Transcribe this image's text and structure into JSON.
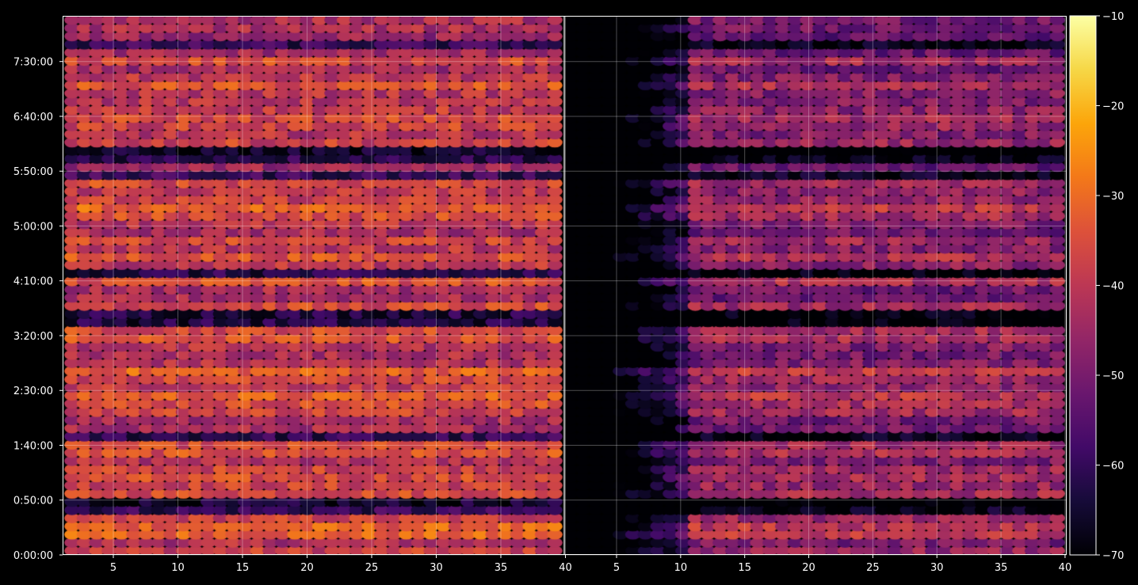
{
  "chart_data": {
    "type": "heatmap",
    "title": "",
    "xlabel": "",
    "ylabel": "",
    "grid": true,
    "colormap": "inferno",
    "background_color": "#000000",
    "panels": [
      {
        "name": "",
        "x_range": [
          1,
          40
        ],
        "x_ticks": [
          5,
          10,
          15,
          20,
          25,
          30,
          35,
          40
        ],
        "x_tick_labels": [
          "5",
          "10",
          "15",
          "20",
          "25",
          "30",
          "35",
          "40"
        ],
        "typical_level_db": -40,
        "hot_rows_time_hint": [
          "0:20:00",
          "1:40:00",
          "2:30:00",
          "2:45:00",
          "4:10:00",
          "5:20:00",
          "6:40:00",
          "7:30:00"
        ]
      },
      {
        "name": "",
        "x_range": [
          1,
          40
        ],
        "x_ticks": [
          5,
          10,
          15,
          20,
          25,
          30,
          35,
          40
        ],
        "x_tick_labels": [
          "5",
          "10",
          "15",
          "20",
          "25",
          "30",
          "35",
          "40"
        ],
        "typical_level_db": -48,
        "quiet_columns_below": 10
      }
    ],
    "y_axis": {
      "type": "time",
      "range_seconds": [
        0,
        29500
      ],
      "ticks": [
        "0:00:00",
        "0:50:00",
        "1:40:00",
        "2:30:00",
        "3:20:00",
        "4:10:00",
        "5:00:00",
        "5:50:00",
        "6:40:00",
        "7:30:00"
      ]
    },
    "colorbar": {
      "range": [
        -70,
        -10
      ],
      "ticks": [
        -70,
        -60,
        -50,
        -40,
        -30,
        -20,
        -10
      ],
      "tick_labels": [
        "−70",
        "−60",
        "−50",
        "−40",
        "−30",
        "−20",
        "−10"
      ]
    },
    "band_structure": {
      "row_count": 66,
      "dark_gap_times": [
        "0:45:00",
        "1:50:00",
        "3:35:00",
        "4:15:00",
        "5:45:00",
        "6:05:00",
        "7:45:00"
      ]
    }
  }
}
